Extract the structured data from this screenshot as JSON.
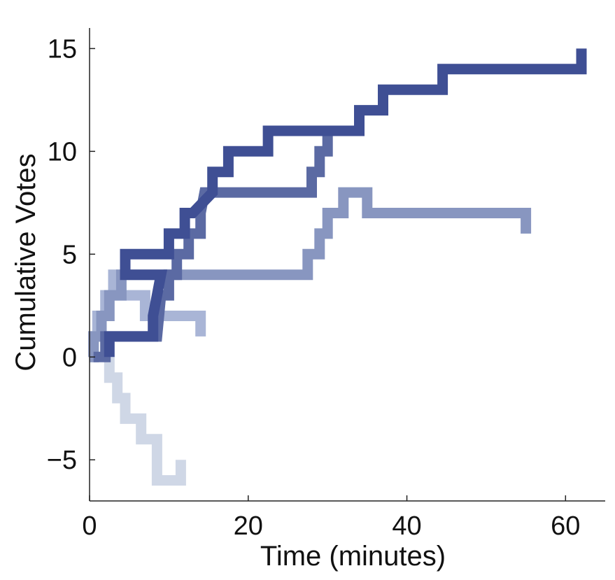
{
  "chart_data": {
    "type": "line",
    "step": true,
    "title": "",
    "xlabel": "Time (minutes)",
    "ylabel": "Cumulative Votes",
    "xlim": [
      0,
      65
    ],
    "ylim": [
      -7,
      16
    ],
    "x_ticks": [
      0,
      20,
      40,
      60
    ],
    "y_ticks": [
      -5,
      0,
      5,
      10,
      15
    ],
    "x_tick_labels": [
      "0",
      "20",
      "40",
      "60"
    ],
    "y_tick_labels": [
      "−5",
      "0",
      "5",
      "10",
      "15"
    ],
    "grid": false,
    "legend": "none",
    "series": [
      {
        "color": "#3f4f94",
        "points": [
          [
            2.5,
            0
          ],
          [
            2.5,
            1
          ],
          [
            8,
            1
          ],
          [
            8,
            2
          ],
          [
            8.5,
            3
          ],
          [
            9,
            4
          ],
          [
            4.5,
            4
          ],
          [
            4.5,
            5
          ],
          [
            10,
            5
          ],
          [
            10,
            6
          ],
          [
            12,
            6
          ],
          [
            12,
            7
          ],
          [
            13,
            7
          ],
          [
            15.5,
            8
          ],
          [
            15.5,
            9
          ],
          [
            17.5,
            9
          ],
          [
            17.5,
            10
          ],
          [
            22.5,
            10
          ],
          [
            22.5,
            11
          ],
          [
            31,
            11
          ],
          [
            31,
            11
          ],
          [
            34,
            11
          ],
          [
            34,
            12
          ],
          [
            37,
            12
          ],
          [
            37,
            13
          ],
          [
            44.5,
            13
          ],
          [
            44.5,
            14
          ],
          [
            62,
            14
          ],
          [
            62,
            15
          ]
        ]
      },
      {
        "color": "#5b6aa3",
        "points": [
          [
            0.5,
            0
          ],
          [
            2,
            0
          ],
          [
            2,
            1
          ],
          [
            8.5,
            1
          ],
          [
            8.5,
            1
          ],
          [
            9,
            3
          ],
          [
            10,
            3
          ],
          [
            10,
            4
          ],
          [
            11,
            4
          ],
          [
            11,
            5
          ],
          [
            12.5,
            5
          ],
          [
            12.5,
            6
          ],
          [
            14,
            6
          ],
          [
            14,
            7
          ],
          [
            14.5,
            8
          ],
          [
            28,
            8
          ],
          [
            28,
            9
          ],
          [
            29,
            9
          ],
          [
            29,
            10
          ],
          [
            30,
            10
          ],
          [
            30,
            11
          ],
          [
            31,
            11
          ]
        ]
      },
      {
        "color": "#8896c0",
        "points": [
          [
            0,
            0
          ],
          [
            0.5,
            0
          ],
          [
            0.5,
            1
          ],
          [
            1.5,
            1
          ],
          [
            1.5,
            2
          ],
          [
            2.5,
            2
          ],
          [
            2.5,
            3
          ],
          [
            4,
            3
          ],
          [
            4,
            4
          ],
          [
            27.5,
            4
          ],
          [
            27.5,
            5
          ],
          [
            29,
            5
          ],
          [
            29,
            6
          ],
          [
            30,
            6
          ],
          [
            30,
            7
          ],
          [
            32,
            7
          ],
          [
            32,
            8
          ],
          [
            35,
            8
          ],
          [
            35,
            7
          ],
          [
            55,
            7
          ],
          [
            55,
            6
          ]
        ]
      },
      {
        "color": "#a9b5d6",
        "points": [
          [
            0,
            0
          ],
          [
            0.5,
            0
          ],
          [
            0.5,
            1
          ],
          [
            1,
            1
          ],
          [
            1,
            2
          ],
          [
            2,
            2
          ],
          [
            2,
            3
          ],
          [
            3,
            3
          ],
          [
            3,
            4
          ],
          [
            3.5,
            4
          ],
          [
            3.5,
            3
          ],
          [
            7,
            3
          ],
          [
            7,
            2
          ],
          [
            14,
            2
          ],
          [
            14,
            1
          ]
        ]
      },
      {
        "color": "#cfd7e6",
        "points": [
          [
            2.5,
            0
          ],
          [
            2.5,
            -1
          ],
          [
            3.5,
            -1
          ],
          [
            3.5,
            -2
          ],
          [
            4.5,
            -2
          ],
          [
            4.5,
            -3
          ],
          [
            6.5,
            -3
          ],
          [
            6.5,
            -4
          ],
          [
            8.5,
            -4
          ],
          [
            8.5,
            -6
          ],
          [
            11.5,
            -6
          ],
          [
            11.5,
            -5
          ]
        ]
      }
    ]
  }
}
